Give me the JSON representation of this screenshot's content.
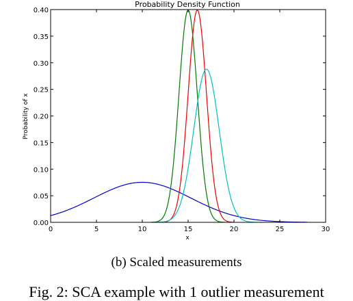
{
  "chart_data": {
    "type": "line",
    "title": "Probability Density Function",
    "xlabel": "x",
    "ylabel": "Probability of x",
    "xlim": [
      0,
      30
    ],
    "ylim": [
      0,
      0.4
    ],
    "xticks": [
      "0",
      "5",
      "10",
      "15",
      "20",
      "25",
      "30"
    ],
    "yticks": [
      "0.00",
      "0.05",
      "0.10",
      "0.15",
      "0.20",
      "0.25",
      "0.30",
      "0.35",
      "0.40"
    ],
    "grid": false,
    "legend": "none",
    "series": [
      {
        "color": "#0000cc",
        "mean": 10,
        "std": 5.3,
        "x_range": [
          0,
          28
        ]
      },
      {
        "color": "#007700",
        "mean": 15,
        "std": 1.0,
        "x_range": [
          11,
          19
        ]
      },
      {
        "color": "#ee0000",
        "mean": 16,
        "std": 1.0,
        "x_range": [
          12,
          20
        ]
      },
      {
        "color": "#00bfbf",
        "mean": 17,
        "std": 1.385,
        "x_range": [
          11,
          23
        ]
      }
    ]
  },
  "captions": {
    "subcaption": "(b) Scaled measurements",
    "figure_caption": "Fig. 2: SCA example with 1 outlier measurement"
  }
}
